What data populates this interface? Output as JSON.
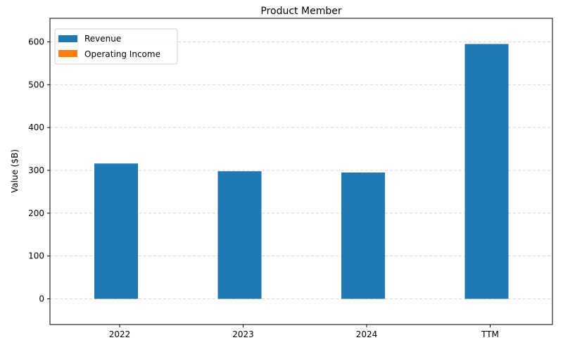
{
  "chart_data": {
    "type": "bar",
    "title": "Product Member",
    "xlabel": "",
    "ylabel": "Value ($B)",
    "categories": [
      "2022",
      "2023",
      "2024",
      "TTM"
    ],
    "series": [
      {
        "name": "Revenue",
        "values": [
          316,
          298,
          295,
          595
        ],
        "color": "#1f77b4"
      },
      {
        "name": "Operating Income",
        "values": [
          0,
          0,
          0,
          0
        ],
        "color": "#ff7f0e"
      }
    ],
    "ylim": [
      -60,
      655
    ],
    "yticks": [
      "0",
      "100",
      "200",
      "300",
      "400",
      "500",
      "600"
    ],
    "grid": "horizontal dashed",
    "legend": "top-left"
  }
}
